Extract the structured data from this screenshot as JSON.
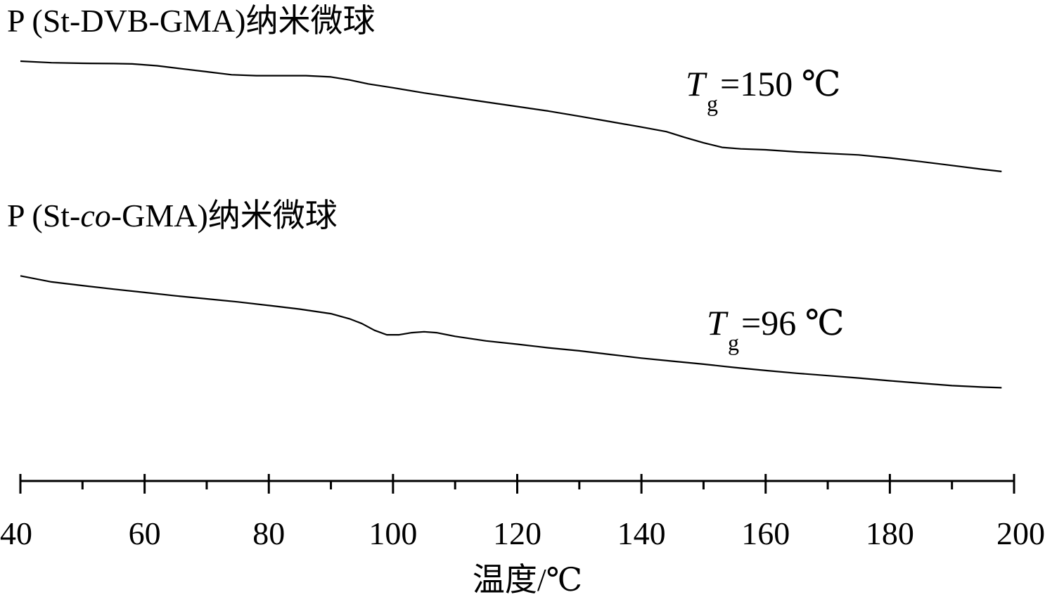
{
  "chart_data": {
    "type": "line",
    "xlabel": "温度/℃",
    "xlim": [
      40,
      200
    ],
    "x_ticks": [
      40,
      60,
      80,
      100,
      120,
      140,
      160,
      180,
      200
    ],
    "x_tick_labels": [
      "40",
      "60",
      "80",
      "100",
      "120",
      "140",
      "160",
      "180",
      "200"
    ],
    "x_minor_step": 10,
    "y_axis_visible": false,
    "grid": false,
    "legend": "none",
    "line_color": "#000000",
    "series": [
      {
        "name": "P (St-DVB-GMA)纳米微球",
        "name_parts": [
          "P (St-DVB-GMA)纳米微球"
        ],
        "annotation": {
          "symbol": "T",
          "subscript": "g",
          "text": "=150 ℃"
        },
        "x": [
          40,
          45,
          50,
          55,
          58,
          62,
          66,
          70,
          74,
          78,
          82,
          86,
          90,
          93,
          96,
          100,
          105,
          110,
          115,
          120,
          125,
          130,
          135,
          140,
          144,
          147,
          150,
          153,
          156,
          160,
          165,
          170,
          175,
          180,
          185,
          190,
          195,
          198
        ],
        "y": [
          0.0,
          -0.5,
          -0.7,
          -0.8,
          -0.9,
          -1.5,
          -2.5,
          -3.5,
          -4.5,
          -4.8,
          -4.8,
          -4.8,
          -5.2,
          -6.2,
          -7.5,
          -8.8,
          -10.5,
          -12.0,
          -13.5,
          -15.0,
          -16.5,
          -18.2,
          -20.0,
          -21.8,
          -23.3,
          -25.2,
          -27.0,
          -28.5,
          -29.0,
          -29.3,
          -30.0,
          -30.5,
          -31.0,
          -32.0,
          -33.2,
          -34.5,
          -35.8,
          -36.5
        ]
      },
      {
        "name": "P (St-co-GMA)纳米微球",
        "name_parts": [
          "P (St-",
          "co",
          "-GMA)纳米微球"
        ],
        "annotation": {
          "symbol": "T",
          "subscript": "g",
          "text": "=96 ℃"
        },
        "x": [
          40,
          45,
          50,
          55,
          60,
          65,
          70,
          75,
          80,
          85,
          90,
          93,
          95,
          97,
          99,
          101,
          103,
          105,
          107,
          110,
          115,
          120,
          125,
          130,
          135,
          140,
          145,
          150,
          155,
          160,
          165,
          170,
          175,
          180,
          185,
          190,
          195,
          198
        ],
        "y": [
          -71.0,
          -73.0,
          -74.2,
          -75.4,
          -76.5,
          -77.6,
          -78.6,
          -79.6,
          -80.8,
          -82.0,
          -83.5,
          -85.2,
          -86.8,
          -89.0,
          -90.5,
          -90.5,
          -89.8,
          -89.5,
          -89.8,
          -91.0,
          -92.5,
          -93.6,
          -94.8,
          -95.8,
          -97.0,
          -98.2,
          -99.2,
          -100.2,
          -101.3,
          -102.3,
          -103.2,
          -104.0,
          -104.8,
          -105.7,
          -106.5,
          -107.3,
          -107.8,
          -108.0
        ]
      }
    ]
  }
}
